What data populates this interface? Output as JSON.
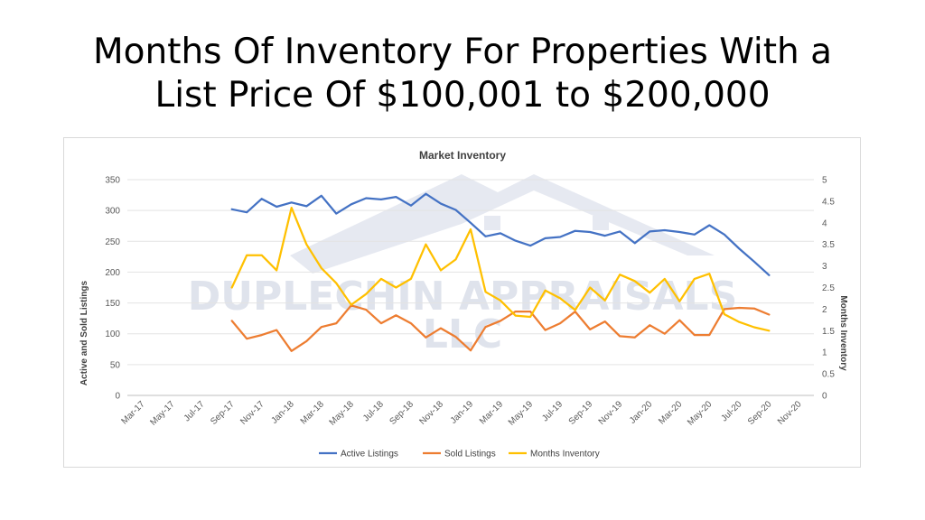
{
  "slide": {
    "title_line1": "Months Of Inventory For Properties With a",
    "title_line2": "List Price Of $100,001 to $200,000"
  },
  "watermark": {
    "line1": "DUPLECHIN APPRAISALS",
    "line2": "LLC",
    "color": "#dfe3ec"
  },
  "chart_data": {
    "type": "line",
    "title": "Market Inventory",
    "ylabel": "Active and Sold Listings",
    "y2label": "Months Inventory",
    "ylim": [
      0,
      350
    ],
    "y2lim": [
      0,
      5
    ],
    "yticks": [
      0,
      50,
      100,
      150,
      200,
      250,
      300,
      350
    ],
    "y2ticks": [
      "0",
      "0.5",
      "1",
      "1.5",
      "2",
      "2.5",
      "3",
      "3.5",
      "4",
      "4.5",
      "5"
    ],
    "x_tick_labels": [
      "Mar-17",
      "May-17",
      "Jul-17",
      "Sep-17",
      "Nov-17",
      "Jan-18",
      "Mar-18",
      "May-18",
      "Jul-18",
      "Sep-18",
      "Nov-18",
      "Jan-19",
      "Mar-19",
      "May-19",
      "Jul-19",
      "Sep-19",
      "Nov-19",
      "Jan-20",
      "Mar-20",
      "May-20",
      "Jul-20",
      "Sep-20",
      "Nov-20"
    ],
    "x": [
      "Sep-17",
      "Oct-17",
      "Nov-17",
      "Dec-17",
      "Jan-18",
      "Feb-18",
      "Mar-18",
      "Apr-18",
      "May-18",
      "Jun-18",
      "Jul-18",
      "Aug-18",
      "Sep-18",
      "Oct-18",
      "Nov-18",
      "Dec-18",
      "Jan-19",
      "Feb-19",
      "Mar-19",
      "Apr-19",
      "May-19",
      "Jun-19",
      "Jul-19",
      "Aug-19",
      "Sep-19",
      "Oct-19",
      "Nov-19",
      "Dec-19",
      "Jan-20",
      "Feb-20",
      "Mar-20",
      "Apr-20",
      "May-20",
      "Jun-20",
      "Jul-20",
      "Aug-20",
      "Sep-20"
    ],
    "series": [
      {
        "name": "Active Listings",
        "color": "#4472c4",
        "axis": "left",
        "values": [
          302,
          297,
          319,
          306,
          313,
          307,
          324,
          295,
          310,
          320,
          318,
          322,
          308,
          327,
          311,
          301,
          280,
          258,
          263,
          251,
          243,
          255,
          257,
          267,
          265,
          259,
          266,
          247,
          266,
          268,
          265,
          261,
          276,
          261,
          238,
          217,
          195
        ]
      },
      {
        "name": "Sold Listings",
        "color": "#ed7d31",
        "axis": "left",
        "values": [
          121,
          92,
          98,
          106,
          72,
          88,
          111,
          117,
          146,
          139,
          117,
          130,
          117,
          94,
          109,
          95,
          73,
          111,
          121,
          136,
          136,
          106,
          117,
          136,
          107,
          120,
          96,
          94,
          114,
          100,
          122,
          98,
          98,
          140,
          142,
          141,
          131
        ]
      },
      {
        "name": "Months Inventory",
        "color": "#ffc000",
        "axis": "right",
        "values": [
          2.5,
          3.25,
          3.25,
          2.9,
          4.35,
          3.5,
          2.95,
          2.6,
          2.1,
          2.35,
          2.7,
          2.5,
          2.7,
          3.5,
          2.9,
          3.15,
          3.85,
          2.4,
          2.2,
          1.85,
          1.82,
          2.43,
          2.25,
          1.98,
          2.5,
          2.2,
          2.8,
          2.65,
          2.38,
          2.7,
          2.18,
          2.7,
          2.82,
          1.88,
          1.7,
          1.58,
          1.5
        ]
      }
    ],
    "grid": true,
    "legend": "bottom"
  }
}
